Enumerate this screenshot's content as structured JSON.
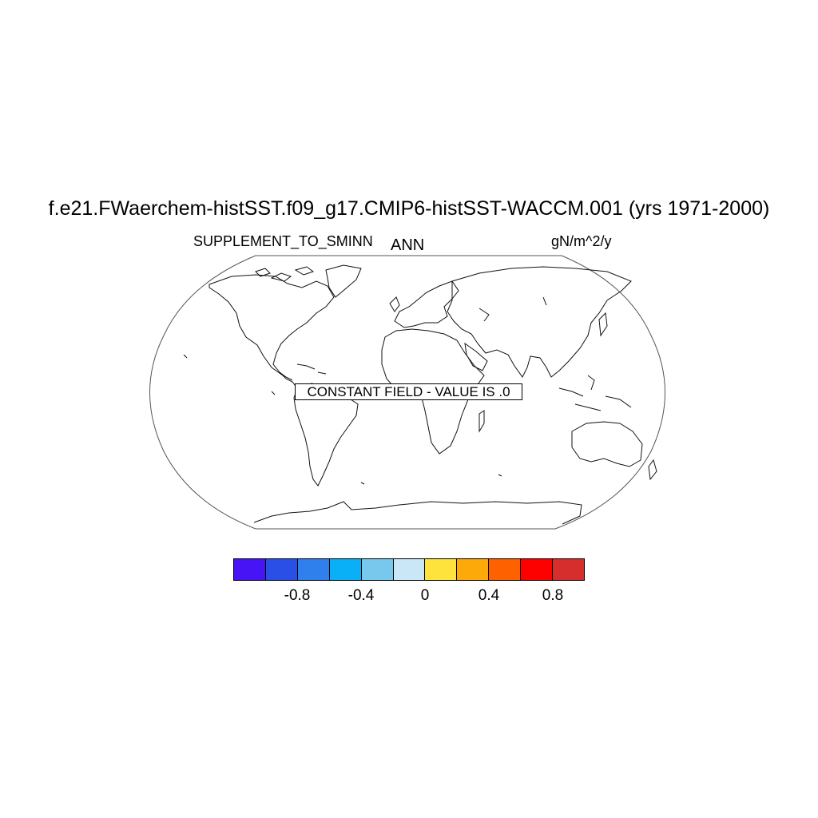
{
  "title": "f.e21.FWaerchem-histSST.f09_g17.CMIP6-histSST-WACCM.001 (yrs 1971-2000)",
  "variable": "SUPPLEMENT_TO_SMINN",
  "season": "ANN",
  "units": "gN/m^2/y",
  "map": {
    "projection": "Robinson",
    "content": "coastlines",
    "message": "CONSTANT FIELD - VALUE IS .0"
  },
  "colorbar": {
    "colors": [
      "#4614f5",
      "#2a4fe6",
      "#2f7fed",
      "#09b0f8",
      "#78c8ee",
      "#c9e7f7",
      "#fde33c",
      "#fea90a",
      "#fe6100",
      "#fd0000",
      "#d62d2d"
    ],
    "labels": [
      "-0.8",
      "-0.4",
      "0",
      "0.4",
      "0.8"
    ]
  }
}
